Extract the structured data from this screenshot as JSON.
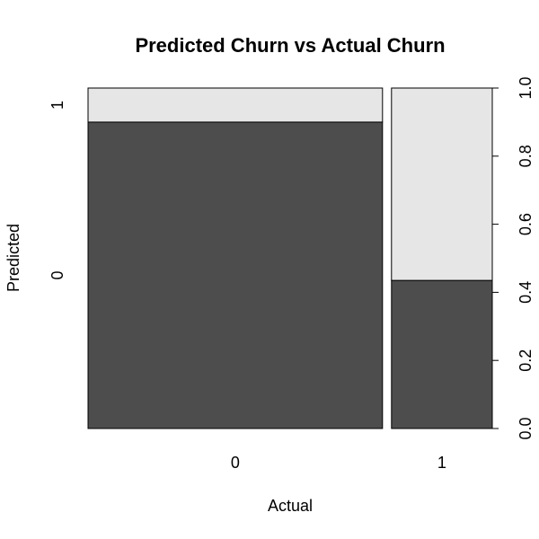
{
  "chart_data": {
    "type": "spineplot",
    "title": "Predicted Churn vs Actual Churn",
    "xlabel": "Actual",
    "ylabel": "Predicted",
    "x_categories": [
      "0",
      "1"
    ],
    "x_proportions": [
      0.745,
      0.255
    ],
    "y_categories": [
      "0",
      "1"
    ],
    "y_ticks": [
      "0.0",
      "0.2",
      "0.4",
      "0.6",
      "0.8",
      "1.0"
    ],
    "ylim": [
      0,
      1
    ],
    "series": [
      {
        "name": "0",
        "values": [
          0.9,
          0.435
        ],
        "color": "#4d4d4d"
      },
      {
        "name": "1",
        "values": [
          0.1,
          0.565
        ],
        "color": "#e6e6e6"
      }
    ]
  }
}
